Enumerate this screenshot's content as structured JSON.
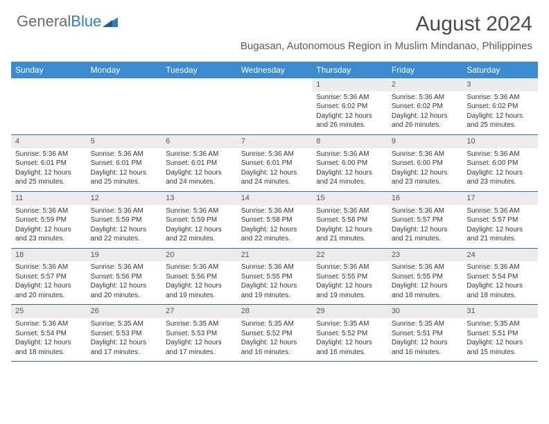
{
  "brand": {
    "part1": "General",
    "part2": "Blue"
  },
  "title": "August 2024",
  "location": "Bugasan, Autonomous Region in Muslim Mindanao, Philippines",
  "colors": {
    "header_bg": "#3b8bd0",
    "header_text": "#ffffff",
    "daynum_bg": "#ececec",
    "cell_border": "#2d6aa3",
    "text": "#333333",
    "logo_gray": "#6b6b6b",
    "logo_blue": "#2d7fc4",
    "background": "#ffffff"
  },
  "weekdays": [
    "Sunday",
    "Monday",
    "Tuesday",
    "Wednesday",
    "Thursday",
    "Friday",
    "Saturday"
  ],
  "weeks": [
    [
      null,
      null,
      null,
      null,
      {
        "n": "1",
        "sr": "5:36 AM",
        "ss": "6:02 PM",
        "dl": "12 hours and 26 minutes."
      },
      {
        "n": "2",
        "sr": "5:36 AM",
        "ss": "6:02 PM",
        "dl": "12 hours and 26 minutes."
      },
      {
        "n": "3",
        "sr": "5:36 AM",
        "ss": "6:02 PM",
        "dl": "12 hours and 25 minutes."
      }
    ],
    [
      {
        "n": "4",
        "sr": "5:36 AM",
        "ss": "6:01 PM",
        "dl": "12 hours and 25 minutes."
      },
      {
        "n": "5",
        "sr": "5:36 AM",
        "ss": "6:01 PM",
        "dl": "12 hours and 25 minutes."
      },
      {
        "n": "6",
        "sr": "5:36 AM",
        "ss": "6:01 PM",
        "dl": "12 hours and 24 minutes."
      },
      {
        "n": "7",
        "sr": "5:36 AM",
        "ss": "6:01 PM",
        "dl": "12 hours and 24 minutes."
      },
      {
        "n": "8",
        "sr": "5:36 AM",
        "ss": "6:00 PM",
        "dl": "12 hours and 24 minutes."
      },
      {
        "n": "9",
        "sr": "5:36 AM",
        "ss": "6:00 PM",
        "dl": "12 hours and 23 minutes."
      },
      {
        "n": "10",
        "sr": "5:36 AM",
        "ss": "6:00 PM",
        "dl": "12 hours and 23 minutes."
      }
    ],
    [
      {
        "n": "11",
        "sr": "5:36 AM",
        "ss": "5:59 PM",
        "dl": "12 hours and 23 minutes."
      },
      {
        "n": "12",
        "sr": "5:36 AM",
        "ss": "5:59 PM",
        "dl": "12 hours and 22 minutes."
      },
      {
        "n": "13",
        "sr": "5:36 AM",
        "ss": "5:59 PM",
        "dl": "12 hours and 22 minutes."
      },
      {
        "n": "14",
        "sr": "5:36 AM",
        "ss": "5:58 PM",
        "dl": "12 hours and 22 minutes."
      },
      {
        "n": "15",
        "sr": "5:36 AM",
        "ss": "5:58 PM",
        "dl": "12 hours and 21 minutes."
      },
      {
        "n": "16",
        "sr": "5:36 AM",
        "ss": "5:57 PM",
        "dl": "12 hours and 21 minutes."
      },
      {
        "n": "17",
        "sr": "5:36 AM",
        "ss": "5:57 PM",
        "dl": "12 hours and 21 minutes."
      }
    ],
    [
      {
        "n": "18",
        "sr": "5:36 AM",
        "ss": "5:57 PM",
        "dl": "12 hours and 20 minutes."
      },
      {
        "n": "19",
        "sr": "5:36 AM",
        "ss": "5:56 PM",
        "dl": "12 hours and 20 minutes."
      },
      {
        "n": "20",
        "sr": "5:36 AM",
        "ss": "5:56 PM",
        "dl": "12 hours and 19 minutes."
      },
      {
        "n": "21",
        "sr": "5:36 AM",
        "ss": "5:55 PM",
        "dl": "12 hours and 19 minutes."
      },
      {
        "n": "22",
        "sr": "5:36 AM",
        "ss": "5:55 PM",
        "dl": "12 hours and 19 minutes."
      },
      {
        "n": "23",
        "sr": "5:36 AM",
        "ss": "5:55 PM",
        "dl": "12 hours and 18 minutes."
      },
      {
        "n": "24",
        "sr": "5:36 AM",
        "ss": "5:54 PM",
        "dl": "12 hours and 18 minutes."
      }
    ],
    [
      {
        "n": "25",
        "sr": "5:36 AM",
        "ss": "5:54 PM",
        "dl": "12 hours and 18 minutes."
      },
      {
        "n": "26",
        "sr": "5:35 AM",
        "ss": "5:53 PM",
        "dl": "12 hours and 17 minutes."
      },
      {
        "n": "27",
        "sr": "5:35 AM",
        "ss": "5:53 PM",
        "dl": "12 hours and 17 minutes."
      },
      {
        "n": "28",
        "sr": "5:35 AM",
        "ss": "5:52 PM",
        "dl": "12 hours and 16 minutes."
      },
      {
        "n": "29",
        "sr": "5:35 AM",
        "ss": "5:52 PM",
        "dl": "12 hours and 16 minutes."
      },
      {
        "n": "30",
        "sr": "5:35 AM",
        "ss": "5:51 PM",
        "dl": "12 hours and 16 minutes."
      },
      {
        "n": "31",
        "sr": "5:35 AM",
        "ss": "5:51 PM",
        "dl": "12 hours and 15 minutes."
      }
    ]
  ],
  "labels": {
    "sunrise": "Sunrise:",
    "sunset": "Sunset:",
    "daylight": "Daylight:"
  }
}
